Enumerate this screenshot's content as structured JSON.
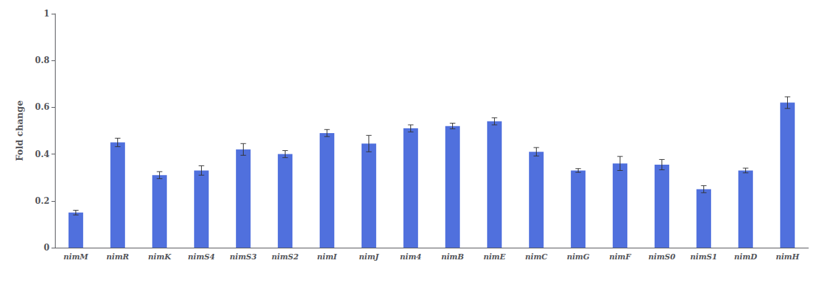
{
  "chart_data": {
    "type": "bar",
    "categories": [
      "nimM",
      "nimR",
      "nimK",
      "nimS4",
      "nimS3",
      "nimS2",
      "nimI",
      "nimJ",
      "nim4",
      "nimB",
      "nimE",
      "nimC",
      "nimG",
      "nimF",
      "nimS0",
      "nimS1",
      "nimD",
      "nimH"
    ],
    "values": [
      0.15,
      0.45,
      0.31,
      0.33,
      0.42,
      0.4,
      0.49,
      0.445,
      0.51,
      0.52,
      0.54,
      0.41,
      0.33,
      0.36,
      0.355,
      0.25,
      0.33,
      0.62
    ],
    "errors": [
      0.01,
      0.018,
      0.015,
      0.02,
      0.025,
      0.015,
      0.015,
      0.035,
      0.015,
      0.012,
      0.015,
      0.018,
      0.008,
      0.03,
      0.022,
      0.015,
      0.01,
      0.025
    ],
    "ylabel": "Fold change",
    "ylim": [
      0,
      1.0
    ],
    "yticks": [
      0,
      0.2,
      0.4,
      0.6,
      0.8,
      1
    ],
    "grid": false
  }
}
